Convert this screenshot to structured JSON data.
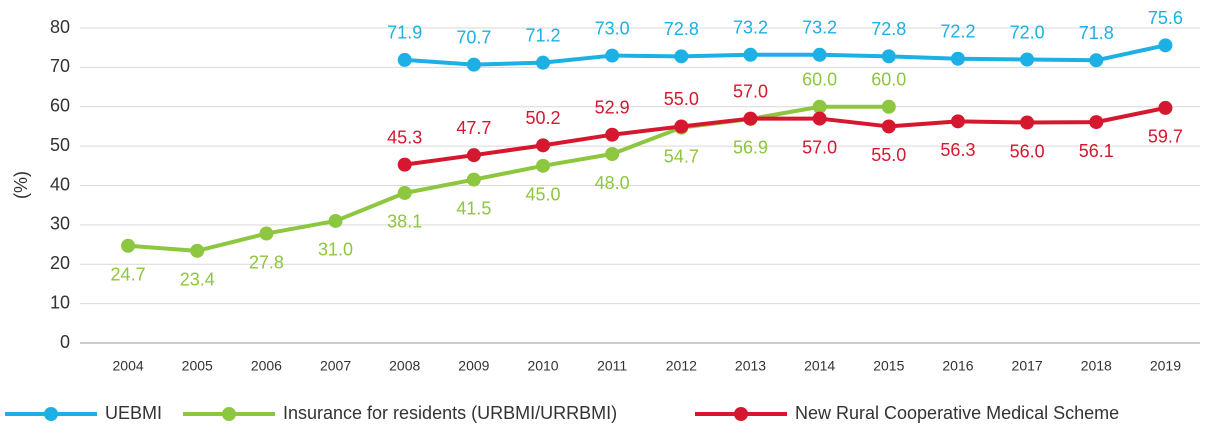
{
  "chart_data": {
    "type": "line",
    "y_label": "(%)",
    "categories": [
      "2004",
      "2005",
      "2006",
      "2007",
      "2008",
      "2009",
      "2010",
      "2011",
      "2012",
      "2013",
      "2014",
      "2015",
      "2016",
      "2017",
      "2018",
      "2019"
    ],
    "series": [
      {
        "name": "UEBMI",
        "color": "#1cb0e4",
        "values": [
          null,
          null,
          null,
          null,
          71.9,
          70.7,
          71.2,
          73.0,
          72.8,
          73.2,
          73.2,
          72.8,
          72.2,
          72.0,
          71.8,
          75.6
        ],
        "value_labels": [
          null,
          null,
          null,
          null,
          "71.9",
          "70.7",
          "71.2",
          "73.0",
          "72.8",
          "73.2",
          "73.2",
          "72.8",
          "72.2",
          "72.0",
          "71.8",
          "75.6"
        ]
      },
      {
        "name": "Insurance for residents (URBMI/URRBMI)",
        "color": "#8dc63f",
        "values": [
          24.7,
          23.4,
          27.8,
          31.0,
          38.1,
          41.5,
          45.0,
          48.0,
          54.7,
          56.9,
          60.0,
          60.0,
          null,
          null,
          null,
          null
        ],
        "value_labels": [
          "24.7",
          "23.4",
          "27.8",
          "31.0",
          "38.1",
          "41.5",
          "45.0",
          "48.0",
          "54.7",
          "56.9",
          "60.0",
          "60.0",
          null,
          null,
          null,
          null
        ]
      },
      {
        "name": "New Rural Cooperative Medical Scheme",
        "color": "#d5172f",
        "values": [
          null,
          null,
          null,
          null,
          45.3,
          47.7,
          50.2,
          52.9,
          55.0,
          57.0,
          57.0,
          55.0,
          56.3,
          56.0,
          56.1,
          59.7
        ],
        "value_labels": [
          null,
          null,
          null,
          null,
          "45.3",
          "47.7",
          "50.2",
          "52.9",
          "55.0",
          "57.0",
          "57.0",
          "55.0",
          "56.3",
          "56.0",
          "56.1",
          "59.7"
        ]
      }
    ],
    "ylim": [
      0,
      80
    ],
    "yticks": [
      0,
      10,
      20,
      30,
      40,
      50,
      60,
      70,
      80
    ],
    "grid": true,
    "legend": "bottom"
  }
}
